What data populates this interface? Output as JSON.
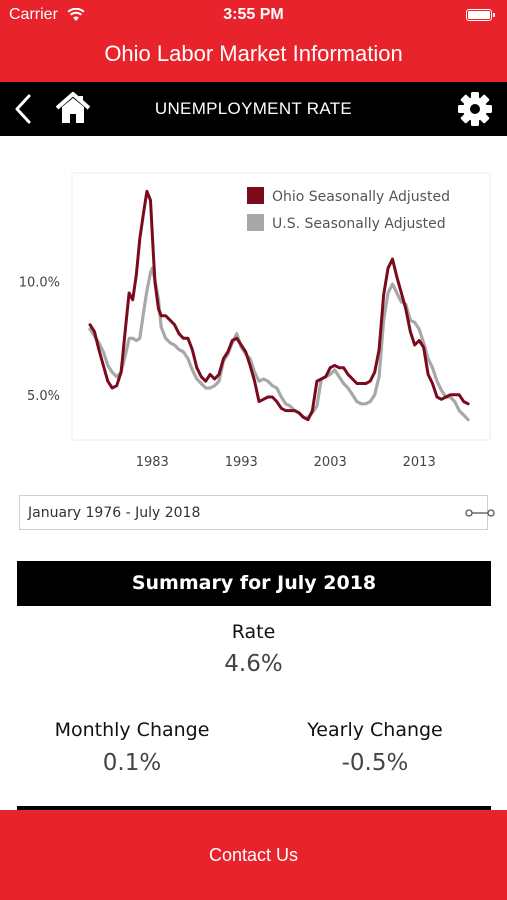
{
  "status_bar": {
    "carrier": "Carrier",
    "time": "3:55 PM"
  },
  "app": {
    "title": "Ohio Labor Market Information"
  },
  "nav": {
    "title": "UNEMPLOYMENT RATE"
  },
  "chart_data": {
    "type": "line",
    "title": "",
    "xlabel": "",
    "ylabel": "",
    "x_ticks": [
      "1983",
      "1993",
      "2003",
      "2013"
    ],
    "y_ticks": [
      "5.0%",
      "10.0%"
    ],
    "xlim": [
      1976,
      2018.6
    ],
    "ylim": [
      3.0,
      14.5
    ],
    "grid": false,
    "legend_position": "top-right",
    "series": [
      {
        "name": "Ohio Seasonally Adjusted",
        "color": "#7a0a1c",
        "x": [
          1976.0,
          1976.5,
          1977.0,
          1977.5,
          1978.0,
          1978.5,
          1979.0,
          1979.5,
          1980.0,
          1980.4,
          1980.8,
          1981.2,
          1981.6,
          1982.0,
          1982.4,
          1982.8,
          1983.0,
          1983.3,
          1983.7,
          1984.0,
          1984.5,
          1985.0,
          1985.5,
          1986.0,
          1986.5,
          1987.0,
          1987.5,
          1988.0,
          1988.5,
          1989.0,
          1989.5,
          1990.0,
          1990.5,
          1991.0,
          1991.5,
          1992.0,
          1992.5,
          1993.0,
          1993.5,
          1994.0,
          1994.5,
          1995.0,
          1995.5,
          1996.0,
          1996.5,
          1997.0,
          1997.5,
          1998.0,
          1998.5,
          1999.0,
          1999.5,
          2000.0,
          2000.5,
          2001.0,
          2001.5,
          2002.0,
          2002.5,
          2003.0,
          2003.5,
          2004.0,
          2004.5,
          2005.0,
          2005.5,
          2006.0,
          2006.5,
          2007.0,
          2007.5,
          2008.0,
          2008.5,
          2009.0,
          2009.5,
          2010.0,
          2010.5,
          2011.0,
          2011.5,
          2012.0,
          2012.5,
          2013.0,
          2013.5,
          2014.0,
          2014.5,
          2015.0,
          2015.5,
          2016.0,
          2016.5,
          2017.0,
          2017.5,
          2018.0,
          2018.5
        ],
        "values": [
          8.1,
          7.8,
          7.0,
          6.3,
          5.6,
          5.3,
          5.4,
          6.0,
          8.0,
          9.5,
          9.2,
          10.3,
          11.9,
          13.0,
          14.0,
          13.6,
          12.1,
          10.0,
          8.8,
          8.5,
          8.5,
          8.3,
          8.1,
          7.7,
          7.5,
          7.5,
          7.0,
          6.2,
          5.8,
          5.6,
          5.9,
          5.7,
          5.9,
          6.6,
          6.9,
          7.4,
          7.5,
          7.2,
          6.9,
          6.3,
          5.6,
          4.7,
          4.8,
          4.9,
          4.9,
          4.7,
          4.4,
          4.3,
          4.3,
          4.3,
          4.2,
          4.0,
          3.9,
          4.3,
          5.6,
          5.7,
          5.8,
          6.2,
          6.3,
          6.2,
          6.2,
          5.9,
          5.7,
          5.5,
          5.5,
          5.5,
          5.6,
          6.0,
          7.0,
          9.4,
          10.6,
          11.0,
          10.2,
          9.5,
          8.8,
          7.8,
          7.2,
          7.4,
          7.1,
          5.9,
          5.5,
          4.9,
          4.8,
          4.9,
          5.0,
          5.0,
          5.0,
          4.7,
          4.6
        ]
      },
      {
        "name": "U.S. Seasonally Adjusted",
        "color": "#a8a8a8",
        "x": [
          1976.0,
          1976.5,
          1977.0,
          1977.5,
          1978.0,
          1978.5,
          1979.0,
          1979.5,
          1980.0,
          1980.4,
          1980.8,
          1981.2,
          1981.6,
          1982.0,
          1982.4,
          1982.8,
          1983.0,
          1983.3,
          1983.7,
          1984.0,
          1984.5,
          1985.0,
          1985.5,
          1986.0,
          1986.5,
          1987.0,
          1987.5,
          1988.0,
          1988.5,
          1989.0,
          1989.5,
          1990.0,
          1990.5,
          1991.0,
          1991.5,
          1992.0,
          1992.5,
          1993.0,
          1993.5,
          1994.0,
          1994.5,
          1995.0,
          1995.5,
          1996.0,
          1996.5,
          1997.0,
          1997.5,
          1998.0,
          1998.5,
          1999.0,
          1999.5,
          2000.0,
          2000.5,
          2001.0,
          2001.5,
          2002.0,
          2002.5,
          2003.0,
          2003.5,
          2004.0,
          2004.5,
          2005.0,
          2005.5,
          2006.0,
          2006.5,
          2007.0,
          2007.5,
          2008.0,
          2008.5,
          2009.0,
          2009.5,
          2010.0,
          2010.5,
          2011.0,
          2011.5,
          2012.0,
          2012.5,
          2013.0,
          2013.5,
          2014.0,
          2014.5,
          2015.0,
          2015.5,
          2016.0,
          2016.5,
          2017.0,
          2017.5,
          2018.0,
          2018.5
        ],
        "values": [
          7.9,
          7.6,
          7.3,
          6.9,
          6.3,
          6.0,
          5.8,
          6.0,
          6.8,
          7.5,
          7.5,
          7.4,
          7.5,
          8.6,
          9.6,
          10.4,
          10.6,
          10.1,
          9.2,
          8.0,
          7.5,
          7.3,
          7.2,
          7.0,
          6.9,
          6.6,
          6.1,
          5.7,
          5.5,
          5.3,
          5.3,
          5.4,
          5.6,
          6.5,
          6.8,
          7.3,
          7.7,
          7.1,
          6.8,
          6.6,
          6.0,
          5.6,
          5.7,
          5.6,
          5.4,
          5.3,
          4.9,
          4.6,
          4.5,
          4.3,
          4.2,
          4.0,
          4.0,
          4.2,
          4.5,
          5.7,
          5.8,
          5.9,
          6.1,
          5.8,
          5.5,
          5.3,
          5.0,
          4.7,
          4.6,
          4.6,
          4.7,
          5.0,
          5.8,
          8.3,
          9.5,
          9.9,
          9.5,
          9.1,
          9.0,
          8.3,
          8.2,
          7.9,
          7.3,
          6.6,
          6.2,
          5.6,
          5.2,
          4.9,
          4.9,
          4.7,
          4.3,
          4.1,
          3.9
        ]
      }
    ]
  },
  "date_range": {
    "label": "January 1976 - July 2018"
  },
  "summary": {
    "header": "Summary for July 2018",
    "rate_label": "Rate",
    "rate_value": "4.6%",
    "monthly_label": "Monthly Change",
    "monthly_value": "0.1%",
    "yearly_label": "Yearly Change",
    "yearly_value": "-0.5%"
  },
  "footer": {
    "contact_label": "Contact Us"
  },
  "colors": {
    "brand_red": "#e8232b",
    "nav_black": "#000000"
  },
  "icons": [
    "wifi-icon",
    "battery-icon",
    "back-icon",
    "home-icon",
    "gear-icon",
    "date-slider-icon"
  ]
}
